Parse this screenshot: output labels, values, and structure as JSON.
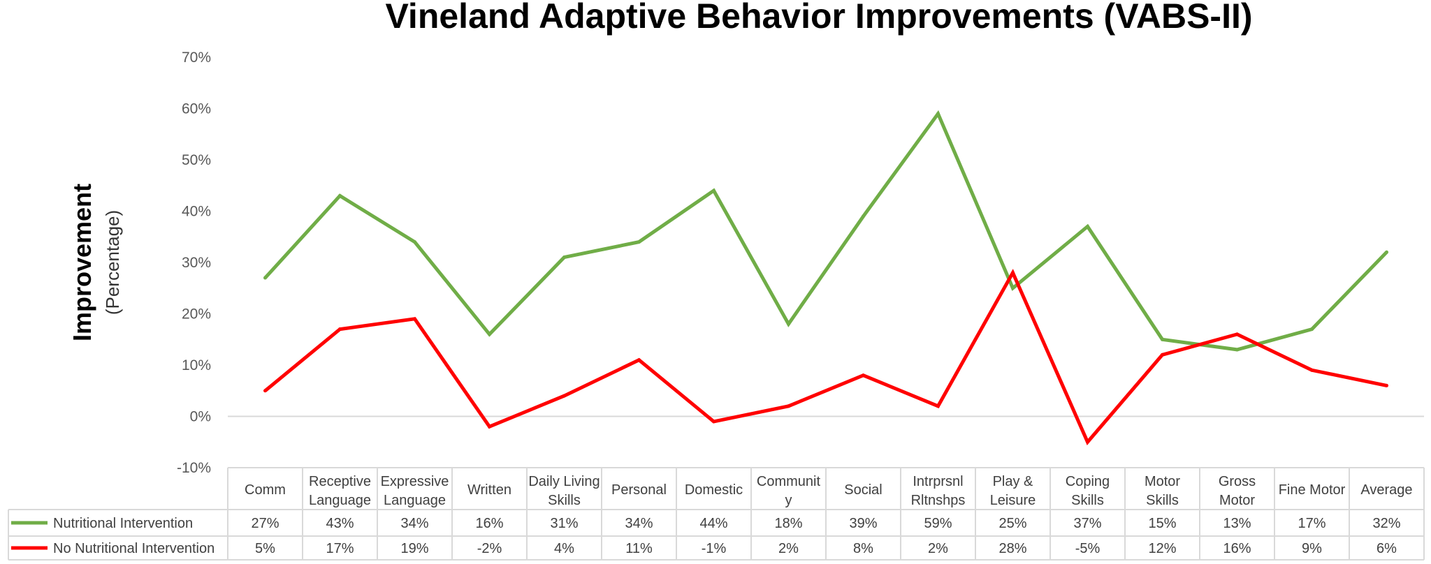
{
  "chart_data": {
    "type": "line",
    "title": "Vineland Adaptive Behavior Improvements (VABS-II)",
    "ylabel": "Improvement",
    "ylabel_sub": "(Percentage)",
    "ylim": [
      -10,
      70
    ],
    "ytick_labels": [
      "70%",
      "60%",
      "50%",
      "40%",
      "30%",
      "20%",
      "10%",
      "0%",
      "-10%"
    ],
    "categories": [
      [
        "Comm"
      ],
      [
        "Receptive",
        "Language"
      ],
      [
        "Expressive",
        "Language"
      ],
      [
        "Written"
      ],
      [
        "Daily Living",
        "Skills"
      ],
      [
        "Personal"
      ],
      [
        "Domestic"
      ],
      [
        "Communit",
        "y"
      ],
      [
        "Social"
      ],
      [
        "Intrprsnl",
        "Rltnshps"
      ],
      [
        "Play &",
        "Leisure"
      ],
      [
        "Coping",
        "Skills"
      ],
      [
        "Motor",
        "Skills"
      ],
      [
        "Gross",
        "Motor"
      ],
      [
        "Fine Motor"
      ],
      [
        "Average"
      ]
    ],
    "series": [
      {
        "name": "Nutritional Intervention",
        "color": "#70AD47",
        "values": [
          27,
          43,
          34,
          16,
          31,
          34,
          44,
          18,
          39,
          59,
          25,
          37,
          15,
          13,
          17,
          32
        ],
        "labels": [
          "27%",
          "43%",
          "34%",
          "16%",
          "31%",
          "34%",
          "44%",
          "18%",
          "39%",
          "59%",
          "25%",
          "37%",
          "15%",
          "13%",
          "17%",
          "32%"
        ]
      },
      {
        "name": "No Nutritional Intervention",
        "color": "#FF0000",
        "values": [
          5,
          17,
          19,
          -2,
          4,
          11,
          -1,
          2,
          8,
          2,
          28,
          -5,
          12,
          16,
          9,
          6
        ],
        "labels": [
          "5%",
          "17%",
          "19%",
          "-2%",
          "4%",
          "11%",
          "-1%",
          "2%",
          "8%",
          "2%",
          "28%",
          "-5%",
          "12%",
          "16%",
          "9%",
          "6%"
        ]
      }
    ],
    "grid": false,
    "legend_placement": "data-table-left"
  }
}
